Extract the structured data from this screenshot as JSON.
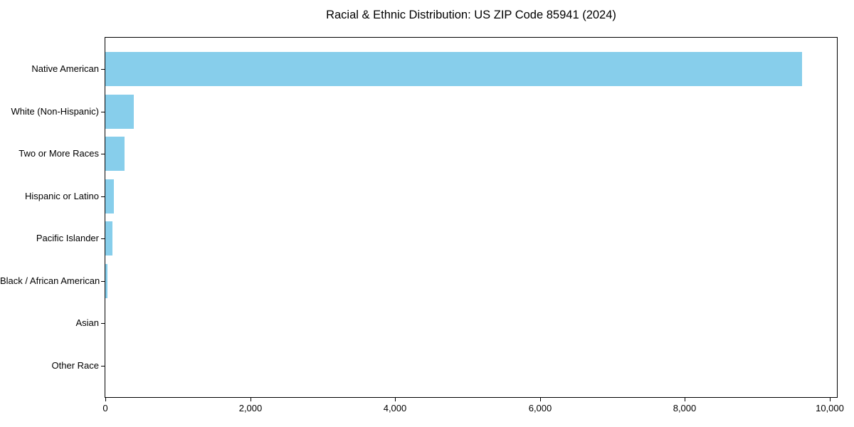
{
  "chart_data": {
    "type": "bar",
    "orientation": "horizontal",
    "title": "Racial & Ethnic Distribution: US ZIP Code 85941 (2024)",
    "categories": [
      "Native American",
      "White (Non-Hispanic)",
      "Two or More Races",
      "Hispanic or Latino",
      "Pacific Islander",
      "Black / African American",
      "Asian",
      "Other Race"
    ],
    "values": [
      9620,
      395,
      265,
      120,
      95,
      30,
      0,
      0
    ],
    "xlabel": "",
    "ylabel": "",
    "xlim": [
      0,
      10100
    ],
    "xticks": [
      0,
      2000,
      4000,
      6000,
      8000,
      10000
    ],
    "xtick_labels": [
      "0",
      "2,000",
      "4,000",
      "6,000",
      "8,000",
      "10,000"
    ],
    "bar_color": "#87CEEB",
    "axis_color": "#000000",
    "text_color": "#000000",
    "background_color": "#ffffff",
    "grid": false,
    "legend": false
  }
}
